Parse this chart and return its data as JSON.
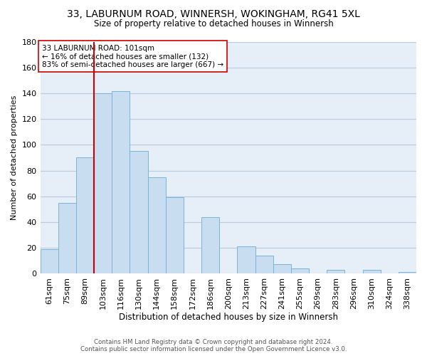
{
  "title": "33, LABURNUM ROAD, WINNERSH, WOKINGHAM, RG41 5XL",
  "subtitle": "Size of property relative to detached houses in Winnersh",
  "xlabel": "Distribution of detached houses by size in Winnersh",
  "ylabel": "Number of detached properties",
  "bar_labels": [
    "61sqm",
    "75sqm",
    "89sqm",
    "103sqm",
    "116sqm",
    "130sqm",
    "144sqm",
    "158sqm",
    "172sqm",
    "186sqm",
    "200sqm",
    "213sqm",
    "227sqm",
    "241sqm",
    "255sqm",
    "269sqm",
    "283sqm",
    "296sqm",
    "310sqm",
    "324sqm",
    "338sqm"
  ],
  "bar_values": [
    19,
    55,
    90,
    140,
    142,
    95,
    75,
    59,
    0,
    44,
    0,
    21,
    14,
    7,
    4,
    0,
    3,
    0,
    3,
    0,
    1
  ],
  "bar_color": "#c9ddf0",
  "bar_edge_color": "#7ab4d8",
  "vline_x_index": 3,
  "vline_color": "#cc0000",
  "annotation_text": "33 LABURNUM ROAD: 101sqm\n← 16% of detached houses are smaller (132)\n83% of semi-detached houses are larger (667) →",
  "annotation_box_color": "#ffffff",
  "annotation_box_edge": "#cc0000",
  "ylim": [
    0,
    180
  ],
  "yticks": [
    0,
    20,
    40,
    60,
    80,
    100,
    120,
    140,
    160,
    180
  ],
  "footer_line1": "Contains HM Land Registry data © Crown copyright and database right 2024.",
  "footer_line2": "Contains public sector information licensed under the Open Government Licence v3.0.",
  "bg_color": "#ffffff",
  "plot_bg_color": "#e6eef8",
  "grid_color": "#b8cce0"
}
